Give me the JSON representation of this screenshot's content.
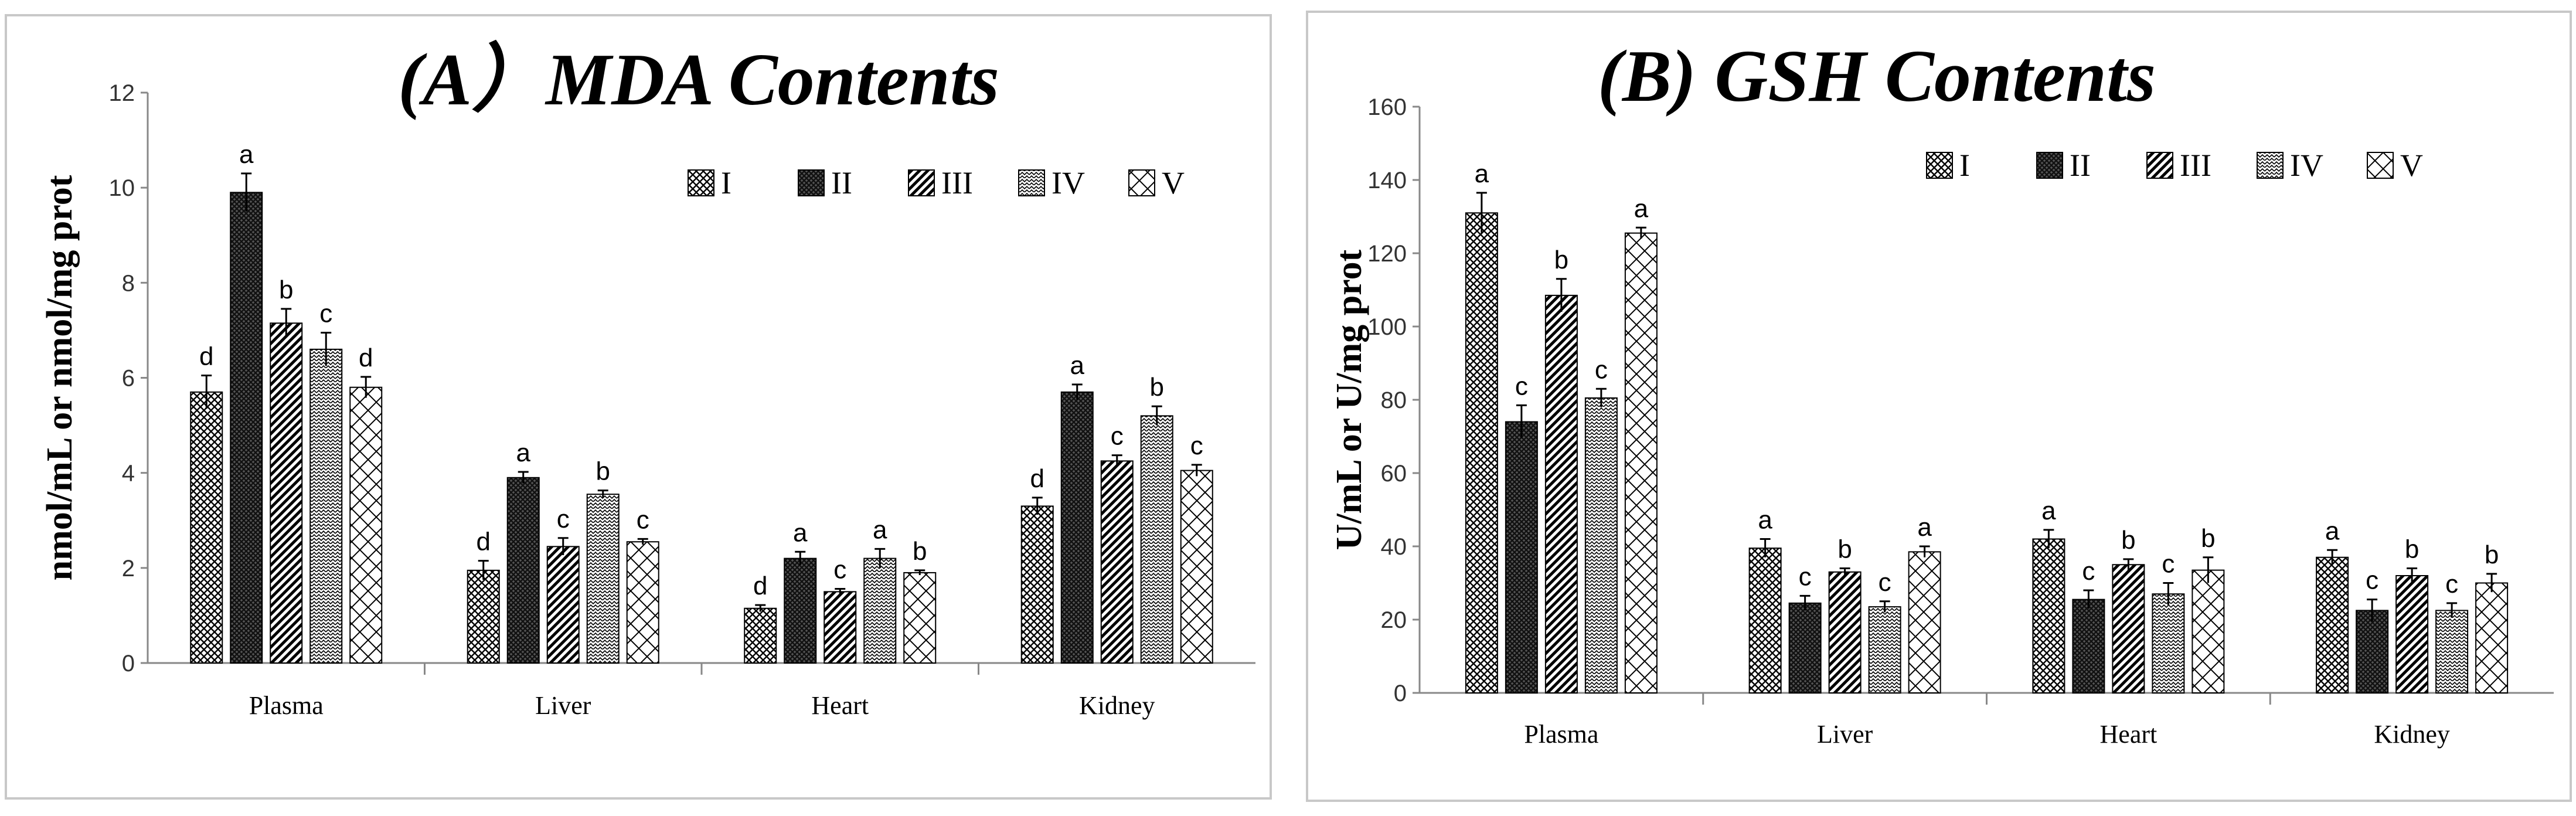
{
  "chart_data": [
    {
      "id": "A",
      "type": "bar",
      "title": "(A）MDA Contents",
      "ylabel": "nmol/mL or nmol/mg prot",
      "xlabel": "",
      "ylim": [
        0,
        12
      ],
      "yticks": [
        0,
        2,
        4,
        6,
        8,
        10,
        12
      ],
      "categories": [
        "Plasma",
        "Liver",
        "Heart",
        "Kidney"
      ],
      "legend_position": "top-right",
      "series": [
        {
          "name": "I",
          "pattern": "p1",
          "values": [
            5.7,
            1.95,
            1.15,
            3.3
          ],
          "errors": [
            0.35,
            0.2,
            0.07,
            0.18
          ],
          "labels": [
            "d",
            "d",
            "d",
            "d"
          ]
        },
        {
          "name": "II",
          "pattern": "p2",
          "values": [
            9.9,
            3.9,
            2.2,
            5.7
          ],
          "errors": [
            0.4,
            0.12,
            0.14,
            0.16
          ],
          "labels": [
            "a",
            "a",
            "a",
            "a"
          ]
        },
        {
          "name": "III",
          "pattern": "p3",
          "values": [
            7.15,
            2.45,
            1.5,
            4.25
          ],
          "errors": [
            0.3,
            0.18,
            0.06,
            0.12
          ],
          "labels": [
            "b",
            "c",
            "c",
            "c"
          ]
        },
        {
          "name": "IV",
          "pattern": "p4",
          "values": [
            6.6,
            3.55,
            2.2,
            5.2
          ],
          "errors": [
            0.35,
            0.08,
            0.2,
            0.2
          ],
          "labels": [
            "c",
            "b",
            "a",
            "b"
          ]
        },
        {
          "name": "V",
          "pattern": "p5",
          "values": [
            5.8,
            2.55,
            1.9,
            4.05
          ],
          "errors": [
            0.22,
            0.06,
            0.05,
            0.12
          ],
          "labels": [
            "d",
            "c",
            "b",
            "c"
          ]
        }
      ]
    },
    {
      "id": "B",
      "type": "bar",
      "title": "(B) GSH Contents",
      "ylabel": "U/mL or U/mg prot",
      "xlabel": "",
      "ylim": [
        0,
        160
      ],
      "yticks": [
        0,
        20,
        40,
        60,
        80,
        100,
        120,
        140,
        160
      ],
      "categories": [
        "Plasma",
        "Liver",
        "Heart",
        "Kidney"
      ],
      "legend_position": "top-right",
      "series": [
        {
          "name": "I",
          "pattern": "p1",
          "values": [
            131,
            39.5,
            42,
            37
          ],
          "errors": [
            5.5,
            2.5,
            2.5,
            2.0
          ],
          "labels": [
            "a",
            "a",
            "a",
            "a"
          ]
        },
        {
          "name": "II",
          "pattern": "p2",
          "values": [
            74,
            24.5,
            25.5,
            22.5
          ],
          "errors": [
            4.5,
            2.0,
            2.5,
            3.0
          ],
          "labels": [
            "c",
            "c",
            "c",
            "c"
          ]
        },
        {
          "name": "III",
          "pattern": "p3",
          "values": [
            108.5,
            33,
            35,
            32
          ],
          "errors": [
            4.5,
            1.0,
            1.5,
            2.0
          ],
          "labels": [
            "b",
            "b",
            "b",
            "b"
          ]
        },
        {
          "name": "IV",
          "pattern": "p4",
          "values": [
            80.5,
            23.5,
            27,
            22.5
          ],
          "errors": [
            2.5,
            1.5,
            3.0,
            2.0
          ],
          "labels": [
            "c",
            "c",
            "c",
            "c"
          ]
        },
        {
          "name": "V",
          "pattern": "p5",
          "values": [
            125.5,
            38.5,
            33.5,
            30
          ],
          "errors": [
            1.5,
            1.5,
            3.5,
            2.5
          ],
          "labels": [
            "a",
            "a",
            "b",
            "b"
          ]
        }
      ]
    }
  ]
}
